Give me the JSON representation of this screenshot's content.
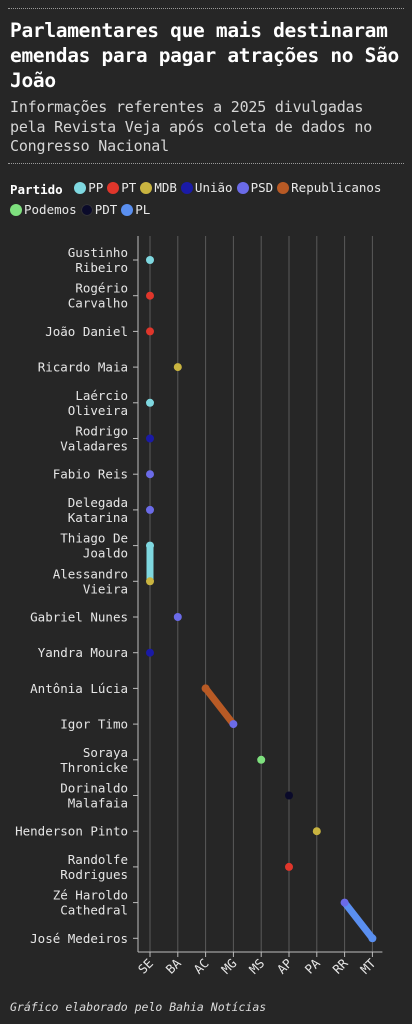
{
  "header": {
    "title": "Parlamentares que mais destinaram emendas para pagar atrações no São João",
    "subtitle": "Informações referentes a 2025 divulgadas pela Revista Veja após coleta de dados no Congresso Nacional"
  },
  "legend": {
    "title": "Partido",
    "items": [
      {
        "label": "PP",
        "color": "#7fd8e0"
      },
      {
        "label": "PT",
        "color": "#e0362b"
      },
      {
        "label": "MDB",
        "color": "#c9b440"
      },
      {
        "label": "União",
        "color": "#1a1aa6"
      },
      {
        "label": "PSD",
        "color": "#6b6be8"
      },
      {
        "label": "Republicanos",
        "color": "#b85a25"
      },
      {
        "label": "Podemos",
        "color": "#7ee07e"
      },
      {
        "label": "PDT",
        "color": "#0a0a2a"
      },
      {
        "label": "PL",
        "color": "#5a8ff0"
      }
    ]
  },
  "chart_data": {
    "type": "scatter",
    "xlabel": "",
    "ylabel": "",
    "x_categories": [
      "SE",
      "BA",
      "AC",
      "MG",
      "MS",
      "AP",
      "PA",
      "RR",
      "MT"
    ],
    "y_categories": [
      "Gustinho Ribeiro",
      "Rogério Carvalho",
      "João Daniel",
      "Ricardo Maia",
      "Laércio Oliveira",
      "Rodrigo Valadares",
      "Fabio Reis",
      "Delegada Katarina",
      "Thiago De Joaldo",
      "Alessandro Vieira",
      "Gabriel Nunes",
      "Yandra Moura",
      "Antônia Lúcia",
      "Igor Timo",
      "Soraya Thronicke",
      "Dorinaldo Malafaia",
      "Henderson Pinto",
      "Randolfe Rodrigues",
      "Zé Haroldo Cathedral",
      "José Medeiros"
    ],
    "y_label_lines": [
      [
        "Gustinho",
        "Ribeiro"
      ],
      [
        "Rogério",
        "Carvalho"
      ],
      [
        "João Daniel"
      ],
      [
        "Ricardo Maia"
      ],
      [
        "Laércio",
        "Oliveira"
      ],
      [
        "Rodrigo",
        "Valadares"
      ],
      [
        "Fabio Reis"
      ],
      [
        "Delegada",
        "Katarina"
      ],
      [
        "Thiago De",
        "Joaldo"
      ],
      [
        "Alessandro",
        "Vieira"
      ],
      [
        "Gabriel Nunes"
      ],
      [
        "Yandra Moura"
      ],
      [
        "Antônia Lúcia"
      ],
      [
        "Igor Timo"
      ],
      [
        "Soraya",
        "Thronicke"
      ],
      [
        "Dorinaldo",
        "Malafaia"
      ],
      [
        "Henderson Pinto"
      ],
      [
        "Randolfe",
        "Rodrigues"
      ],
      [
        "Zé Haroldo",
        "Cathedral"
      ],
      [
        "José Medeiros"
      ]
    ],
    "points": [
      {
        "name": "Gustinho Ribeiro",
        "party": "PP",
        "x": "SE"
      },
      {
        "name": "Rogério Carvalho",
        "party": "PT",
        "x": "SE"
      },
      {
        "name": "João Daniel",
        "party": "PT",
        "x": "SE"
      },
      {
        "name": "Ricardo Maia",
        "party": "MDB",
        "x": "BA"
      },
      {
        "name": "Laércio Oliveira",
        "party": "PP",
        "x": "SE"
      },
      {
        "name": "Rodrigo Valadares",
        "party": "União",
        "x": "SE"
      },
      {
        "name": "Fabio Reis",
        "party": "PSD",
        "x": "SE"
      },
      {
        "name": "Delegada Katarina",
        "party": "PSD",
        "x": "SE"
      },
      {
        "name": "Thiago De Joaldo",
        "party": "PP",
        "x": "SE"
      },
      {
        "name": "Alessandro Vieira",
        "party": "MDB",
        "x": "SE"
      },
      {
        "name": "Gabriel Nunes",
        "party": "PSD",
        "x": "BA"
      },
      {
        "name": "Yandra Moura",
        "party": "União",
        "x": "SE"
      },
      {
        "name": "Antônia Lúcia",
        "party": "Republicanos",
        "x": "AC"
      },
      {
        "name": "Igor Timo",
        "party": "PSD",
        "x": "MG"
      },
      {
        "name": "Soraya Thronicke",
        "party": "Podemos",
        "x": "MS"
      },
      {
        "name": "Dorinaldo Malafaia",
        "party": "PDT",
        "x": "AP"
      },
      {
        "name": "Henderson Pinto",
        "party": "MDB",
        "x": "PA"
      },
      {
        "name": "Randolfe Rodrigues",
        "party": "PT",
        "x": "AP"
      },
      {
        "name": "Zé Haroldo Cathedral",
        "party": "PSD",
        "x": "RR"
      },
      {
        "name": "José Medeiros",
        "party": "PL",
        "x": "MT"
      }
    ],
    "connectors": [
      {
        "from": 8,
        "to": 9,
        "color": "#7fd8e0"
      },
      {
        "from": 12,
        "to": 13,
        "color": "#b85a25"
      },
      {
        "from": 18,
        "to": 19,
        "color": "#5a8ff0"
      }
    ],
    "grid": true
  },
  "footer": {
    "note": "Gráfico elaborado pelo Bahia Notícias"
  }
}
